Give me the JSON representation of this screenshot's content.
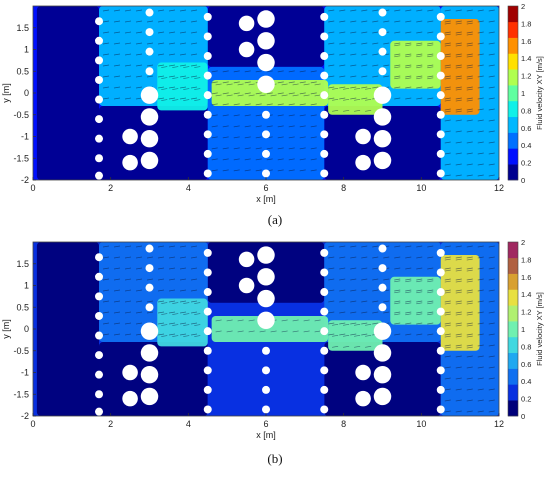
{
  "chart_data": [
    {
      "panel_label": "(a)",
      "type": "heatmap",
      "xlabel": "x [m]",
      "ylabel": "y [m]",
      "xlim": [
        0,
        12
      ],
      "ylim": [
        -2,
        2
      ],
      "xticks": [
        0,
        2,
        4,
        6,
        8,
        10,
        12
      ],
      "yticks": [
        -2,
        -1.5,
        -1,
        -0.5,
        0,
        0.5,
        1,
        1.5
      ],
      "colorbar": {
        "label": "Fluid velocity XY [m/s]",
        "range": [
          0,
          2
        ],
        "ticks": [
          0,
          0.2,
          0.4,
          0.6,
          0.8,
          1,
          1.2,
          1.4,
          1.6,
          1.8,
          2
        ],
        "colors": [
          "#00008f",
          "#0010ff",
          "#0070ff",
          "#00b8ff",
          "#10f0e8",
          "#60ffa0",
          "#b0ff50",
          "#ffe000",
          "#ff9000",
          "#ff3000",
          "#a00000"
        ]
      },
      "cylinder_columns": [
        {
          "x": 1.7,
          "diameter": 0.2,
          "y": [
            -1.9,
            -1.5,
            -1.05,
            -0.6,
            -0.15,
            0.3,
            0.75,
            1.2,
            1.65
          ]
        },
        {
          "x": 3.0,
          "diameter": 0.45,
          "y": [
            -1.55,
            -1.05,
            -0.55,
            -0.05
          ]
        },
        {
          "x": 2.5,
          "diameter": 0.4,
          "y": [
            -1.6,
            -1.0
          ]
        },
        {
          "x": 3.0,
          "diameter": 0.2,
          "y": [
            0.5,
            0.95,
            1.4,
            1.85
          ]
        },
        {
          "x": 4.5,
          "diameter": 0.2,
          "y": [
            -1.85,
            -1.4,
            -0.95,
            -0.5,
            -0.05,
            0.4,
            0.85,
            1.3,
            1.75
          ]
        },
        {
          "x": 6.0,
          "diameter": 0.45,
          "y": [
            0.2,
            0.7,
            1.2,
            1.7
          ]
        },
        {
          "x": 5.5,
          "diameter": 0.4,
          "y": [
            1.0,
            1.6
          ]
        },
        {
          "x": 6.0,
          "diameter": 0.2,
          "y": [
            -1.85,
            -1.4,
            -0.95,
            -0.5
          ]
        },
        {
          "x": 7.5,
          "diameter": 0.2,
          "y": [
            -1.85,
            -1.4,
            -0.95,
            -0.5,
            -0.05,
            0.4,
            0.85,
            1.3,
            1.75
          ]
        },
        {
          "x": 9.0,
          "diameter": 0.45,
          "y": [
            -1.55,
            -1.05,
            -0.55,
            -0.05
          ]
        },
        {
          "x": 8.5,
          "diameter": 0.4,
          "y": [
            -1.6,
            -1.0
          ]
        },
        {
          "x": 9.0,
          "diameter": 0.2,
          "y": [
            0.5,
            0.95,
            1.4,
            1.85
          ]
        },
        {
          "x": 10.5,
          "diameter": 0.2,
          "y": [
            -1.85,
            -1.4,
            -0.95,
            -0.5,
            -0.05,
            0.4,
            0.85,
            1.3,
            1.75
          ]
        }
      ],
      "velocity_regions": [
        {
          "x": [
            0.1,
            1.7
          ],
          "y": [
            -2,
            2
          ],
          "value": 0.05
        },
        {
          "x": [
            1.7,
            4.5
          ],
          "y": [
            -2,
            -0.3
          ],
          "value": 0.05
        },
        {
          "x": [
            4.5,
            7.5
          ],
          "y": [
            0.6,
            2
          ],
          "value": 0.05
        },
        {
          "x": [
            7.5,
            10.5
          ],
          "y": [
            -2,
            -0.3
          ],
          "value": 0.05
        },
        {
          "x": [
            1.7,
            4.5
          ],
          "y": [
            -0.3,
            2
          ],
          "value": 0.55
        },
        {
          "x": [
            4.5,
            7.5
          ],
          "y": [
            -2,
            0.6
          ],
          "value": 0.45
        },
        {
          "x": [
            7.5,
            10.5
          ],
          "y": [
            -0.3,
            2
          ],
          "value": 0.6
        },
        {
          "x": [
            10.5,
            12
          ],
          "y": [
            -2,
            2
          ],
          "value": 0.55
        },
        {
          "x": [
            3.2,
            4.5
          ],
          "y": [
            -0.4,
            0.7
          ],
          "value": 0.9
        },
        {
          "x": [
            4.6,
            7.6
          ],
          "y": [
            -0.3,
            0.3
          ],
          "value": 1.15
        },
        {
          "x": [
            7.6,
            9.0
          ],
          "y": [
            -0.5,
            0.2
          ],
          "value": 1.25
        },
        {
          "x": [
            9.2,
            10.5
          ],
          "y": [
            0.1,
            1.2
          ],
          "value": 1.1
        },
        {
          "x": [
            10.5,
            11.5
          ],
          "y": [
            -0.5,
            1.7
          ],
          "value": 1.6
        }
      ]
    },
    {
      "panel_label": "(b)",
      "type": "heatmap",
      "xlabel": "x [m]",
      "ylabel": "y [m]",
      "xlim": [
        0,
        12
      ],
      "ylim": [
        -2,
        2
      ],
      "xticks": [
        0,
        2,
        4,
        6,
        8,
        10,
        12
      ],
      "yticks": [
        -2,
        -1.5,
        -1,
        -0.5,
        0,
        0.5,
        1,
        1.5
      ],
      "colorbar": {
        "label": "Fluid velocity XY [m/s]",
        "range": [
          0,
          2
        ],
        "ticks": [
          0,
          0.2,
          0.4,
          0.6,
          0.8,
          1,
          1.2,
          1.4,
          1.6,
          1.8,
          2
        ],
        "colors": [
          "#00007a",
          "#0830e0",
          "#1070f0",
          "#20a8f0",
          "#40d8e0",
          "#70f0b0",
          "#b0f070",
          "#e8e040",
          "#d8a030",
          "#b06040",
          "#a02860"
        ]
      },
      "cylinder_columns": [
        {
          "x": 1.7,
          "diameter": 0.2,
          "y": [
            -1.9,
            -1.5,
            -1.05,
            -0.6,
            -0.15,
            0.3,
            0.75,
            1.2,
            1.65
          ]
        },
        {
          "x": 3.0,
          "diameter": 0.45,
          "y": [
            -1.55,
            -1.05,
            -0.55,
            -0.05
          ]
        },
        {
          "x": 2.5,
          "diameter": 0.4,
          "y": [
            -1.6,
            -1.0
          ]
        },
        {
          "x": 3.0,
          "diameter": 0.2,
          "y": [
            0.5,
            0.95,
            1.4,
            1.85
          ]
        },
        {
          "x": 4.5,
          "diameter": 0.2,
          "y": [
            -1.85,
            -1.4,
            -0.95,
            -0.5,
            -0.05,
            0.4,
            0.85,
            1.3,
            1.75
          ]
        },
        {
          "x": 6.0,
          "diameter": 0.45,
          "y": [
            0.2,
            0.7,
            1.2,
            1.7
          ]
        },
        {
          "x": 5.5,
          "diameter": 0.4,
          "y": [
            1.0,
            1.6
          ]
        },
        {
          "x": 6.0,
          "diameter": 0.2,
          "y": [
            -1.85,
            -1.4,
            -0.95,
            -0.5
          ]
        },
        {
          "x": 7.5,
          "diameter": 0.2,
          "y": [
            -1.85,
            -1.4,
            -0.95,
            -0.5,
            -0.05,
            0.4,
            0.85,
            1.3,
            1.75
          ]
        },
        {
          "x": 9.0,
          "diameter": 0.45,
          "y": [
            -1.55,
            -1.05,
            -0.55,
            -0.05
          ]
        },
        {
          "x": 8.5,
          "diameter": 0.4,
          "y": [
            -1.6,
            -1.0
          ]
        },
        {
          "x": 9.0,
          "diameter": 0.2,
          "y": [
            0.5,
            0.95,
            1.4,
            1.85
          ]
        },
        {
          "x": 10.5,
          "diameter": 0.2,
          "y": [
            -1.85,
            -1.4,
            -0.95,
            -0.5,
            -0.05,
            0.4,
            0.85,
            1.3,
            1.75
          ]
        }
      ],
      "velocity_regions": [
        {
          "x": [
            0.1,
            1.7
          ],
          "y": [
            -2,
            2
          ],
          "value": 0.05
        },
        {
          "x": [
            1.7,
            4.5
          ],
          "y": [
            -2,
            -0.3
          ],
          "value": 0.05
        },
        {
          "x": [
            4.5,
            7.5
          ],
          "y": [
            0.6,
            2
          ],
          "value": 0.05
        },
        {
          "x": [
            7.5,
            10.5
          ],
          "y": [
            -2,
            -0.3
          ],
          "value": 0.05
        },
        {
          "x": [
            1.7,
            4.5
          ],
          "y": [
            -0.3,
            2
          ],
          "value": 0.45
        },
        {
          "x": [
            4.5,
            7.5
          ],
          "y": [
            -2,
            0.6
          ],
          "value": 0.35
        },
        {
          "x": [
            7.5,
            10.5
          ],
          "y": [
            -0.3,
            2
          ],
          "value": 0.5
        },
        {
          "x": [
            10.5,
            12
          ],
          "y": [
            -2,
            2
          ],
          "value": 0.45
        },
        {
          "x": [
            3.2,
            4.5
          ],
          "y": [
            -0.4,
            0.7
          ],
          "value": 0.75
        },
        {
          "x": [
            4.6,
            7.6
          ],
          "y": [
            -0.3,
            0.3
          ],
          "value": 0.95
        },
        {
          "x": [
            7.6,
            9.0
          ],
          "y": [
            -0.5,
            0.2
          ],
          "value": 1.05
        },
        {
          "x": [
            9.2,
            10.5
          ],
          "y": [
            0.1,
            1.2
          ],
          "value": 1.0
        },
        {
          "x": [
            10.5,
            11.5
          ],
          "y": [
            -0.5,
            1.7
          ],
          "value": 1.4
        }
      ]
    }
  ]
}
